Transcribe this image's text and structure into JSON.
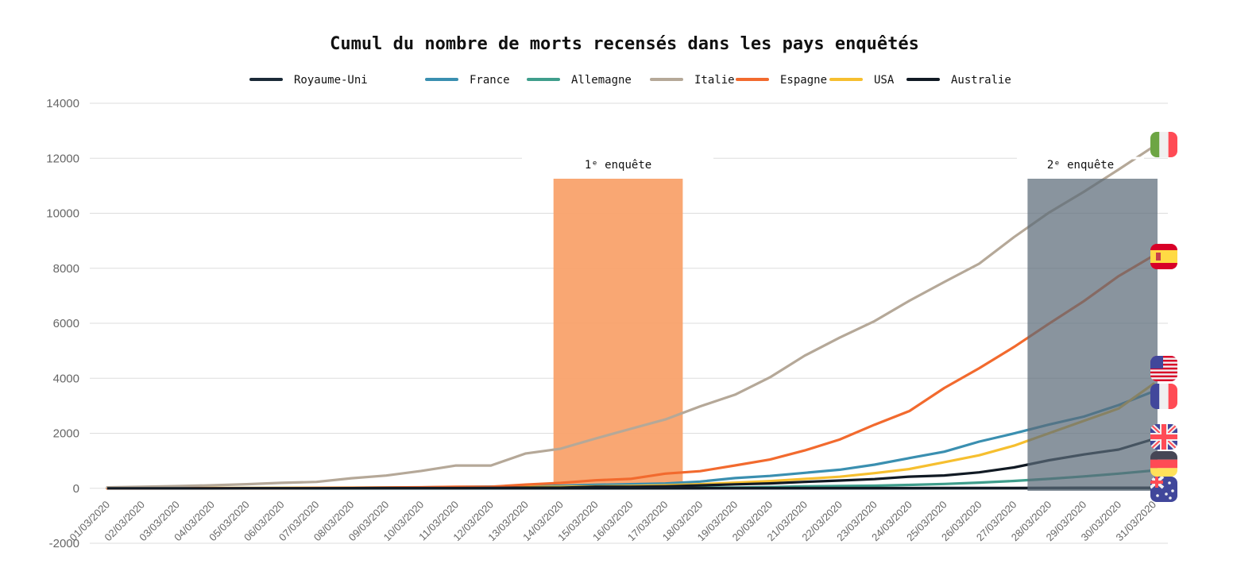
{
  "chart_data": {
    "type": "line",
    "title": "Cumul du nombre de morts recensés dans les pays enquêtés",
    "xlabel": "",
    "ylabel": "",
    "ylim": [
      -2000,
      14000
    ],
    "yticks": [
      14000,
      12000,
      10000,
      8000,
      6000,
      4000,
      2000,
      0,
      -2000
    ],
    "x": [
      "01/03/2020",
      "02/03/2020",
      "03/03/2020",
      "04/03/2020",
      "05/03/2020",
      "06/03/2020",
      "07/03/2020",
      "08/03/2020",
      "09/03/2020",
      "10/03/2020",
      "11/03/2020",
      "12/03/2020",
      "13/03/2020",
      "14/03/2020",
      "15/03/2020",
      "16/03/2020",
      "17/03/2020",
      "18/03/2020",
      "19/03/2020",
      "20/03/2020",
      "21/03/2020",
      "22/03/2020",
      "23/03/2020",
      "24/03/2020",
      "25/03/2020",
      "26/03/2020",
      "27/03/2020",
      "28/03/2020",
      "29/03/2020",
      "30/03/2020",
      "31/03/2020"
    ],
    "grid": true,
    "legend_position": "top",
    "series": [
      {
        "name": "Royaume-Uni",
        "color": "#1b2a38",
        "values": [
          0,
          0,
          0,
          0,
          0,
          0,
          0,
          0,
          0,
          0,
          0,
          0,
          0,
          0,
          0,
          0,
          0,
          0,
          0,
          0,
          0,
          0,
          0,
          0,
          0,
          0,
          0,
          0,
          0,
          0,
          0
        ]
      },
      {
        "name": "France",
        "color": "#3a8fb0",
        "values": [
          2,
          3,
          4,
          4,
          6,
          9,
          16,
          19,
          25,
          33,
          48,
          61,
          79,
          91,
          127,
          148,
          175,
          244,
          372,
          450,
          562,
          674,
          860,
          1100,
          1331,
          1696,
          1995,
          2314,
          2606,
          3024,
          3523
        ]
      },
      {
        "name": "Allemagne",
        "color": "#3f9e8c",
        "values": [
          0,
          0,
          0,
          0,
          0,
          0,
          0,
          0,
          2,
          2,
          3,
          5,
          7,
          9,
          11,
          13,
          17,
          24,
          28,
          44,
          67,
          84,
          94,
          123,
          157,
          206,
          267,
          342,
          433,
          533,
          645
        ]
      },
      {
        "name": "Italie",
        "color": "#b5a898",
        "values": [
          34,
          52,
          79,
          107,
          148,
          197,
          233,
          366,
          463,
          631,
          827,
          827,
          1266,
          1441,
          1809,
          2158,
          2503,
          2978,
          3405,
          4032,
          4825,
          5476,
          6077,
          6820,
          7503,
          8165,
          9134,
          10023,
          10779,
          11591,
          12428
        ]
      },
      {
        "name": "Espagne",
        "color": "#f26a2e",
        "values": [
          0,
          0,
          1,
          2,
          3,
          5,
          10,
          17,
          28,
          35,
          54,
          55,
          133,
          195,
          289,
          342,
          533,
          623,
          830,
          1043,
          1375,
          1772,
          2311,
          2808,
          3647,
          4365,
          5138,
          5982,
          6803,
          7716,
          8464
        ]
      },
      {
        "name": "USA",
        "color": "#f6bf2f",
        "values": [
          1,
          6,
          9,
          11,
          12,
          15,
          19,
          22,
          26,
          30,
          38,
          41,
          48,
          57,
          69,
          86,
          109,
          150,
          205,
          260,
          340,
          420,
          550,
          700,
          950,
          1200,
          1550,
          2000,
          2450,
          2900,
          3800
        ]
      },
      {
        "name": "Australie",
        "color": "#111a24",
        "values": [
          0,
          0,
          1,
          1,
          1,
          2,
          2,
          2,
          3,
          3,
          3,
          3,
          3,
          3,
          5,
          5,
          5,
          5,
          6,
          7,
          7,
          7,
          8,
          8,
          11,
          13,
          14,
          16,
          18,
          18,
          19
        ]
      }
    ],
    "overlay_line": {
      "name": "Royaume-Uni",
      "values": [
        0,
        0,
        0,
        0,
        1,
        2,
        2,
        3,
        6,
        6,
        8,
        10,
        21,
        21,
        56,
        56,
        72,
        104,
        144,
        177,
        233,
        281,
        335,
        422,
        465,
        578,
        759,
        1019,
        1228,
        1408,
        1789
      ]
    },
    "annotations": [
      {
        "label": "1ᵉ enquête",
        "from": "14/03/2020",
        "to": "17/03/2020",
        "color": "#f9a26c",
        "style": "highlight"
      },
      {
        "label": "2ᵉ enquête",
        "from": "27/03/2020",
        "to": "31/03/2020",
        "color": "#5c6b78",
        "style": "overlay"
      }
    ],
    "flags": [
      "italy-flag-icon",
      "spain-flag-icon",
      "usa-flag-icon",
      "france-flag-icon",
      "uk-flag-icon",
      "germany-flag-icon",
      "australia-flag-icon"
    ]
  }
}
